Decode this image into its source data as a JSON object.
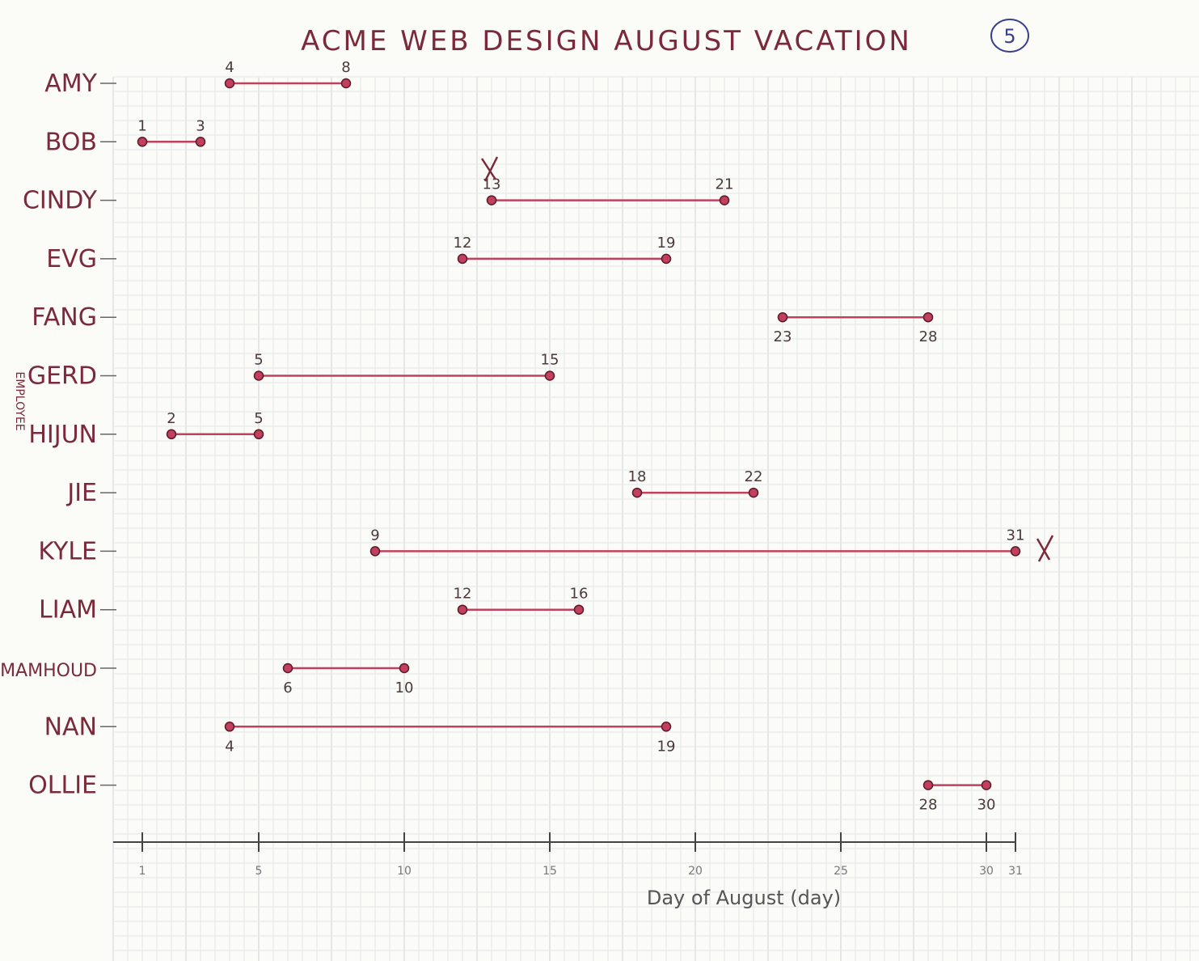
{
  "page_number": "5",
  "chart_data": {
    "type": "range",
    "title": "ACME WEB DESIGN AUGUST VACATION",
    "xlabel": "Day of August (day)",
    "ylabel": "EMPLOYEE",
    "xlim": [
      0,
      31
    ],
    "x_ticks": [
      1,
      5,
      10,
      15,
      20,
      25,
      30,
      31
    ],
    "grid": true,
    "line_color": "#c2405e",
    "ink_color": "#7a2a3a",
    "ranges": [
      {
        "name": "AMY",
        "start": 4,
        "end": 8,
        "start_label": "4",
        "end_label": "8"
      },
      {
        "name": "BOB",
        "start": 1,
        "end": 3,
        "start_label": "1",
        "end_label": "3"
      },
      {
        "name": "CINDY",
        "start": 13,
        "end": 21,
        "start_label": "13",
        "end_label": "21"
      },
      {
        "name": "EVG",
        "start": 12,
        "end": 19,
        "start_label": "12",
        "end_label": "19"
      },
      {
        "name": "FANG",
        "start": 23,
        "end": 28,
        "start_label": "23",
        "end_label": "28"
      },
      {
        "name": "GERD",
        "start": 5,
        "end": 15,
        "start_label": "5",
        "end_label": "15"
      },
      {
        "name": "HIJUN",
        "start": 2,
        "end": 5,
        "start_label": "2",
        "end_label": "5"
      },
      {
        "name": "JIE",
        "start": 18,
        "end": 22,
        "start_label": "18",
        "end_label": "22"
      },
      {
        "name": "KYLE",
        "start": 9,
        "end": 31,
        "start_label": "9",
        "end_label": "31"
      },
      {
        "name": "LIAM",
        "start": 12,
        "end": 16,
        "start_label": "12",
        "end_label": "16"
      },
      {
        "name": "MAMHOUD",
        "start": 6,
        "end": 10,
        "start_label": "6",
        "end_label": "10"
      },
      {
        "name": "NAN",
        "start": 4,
        "end": 19,
        "start_label": "4",
        "end_label": "19"
      },
      {
        "name": "OLLIE",
        "start": 28,
        "end": 30,
        "start_label": "28",
        "end_label": "30"
      }
    ]
  }
}
